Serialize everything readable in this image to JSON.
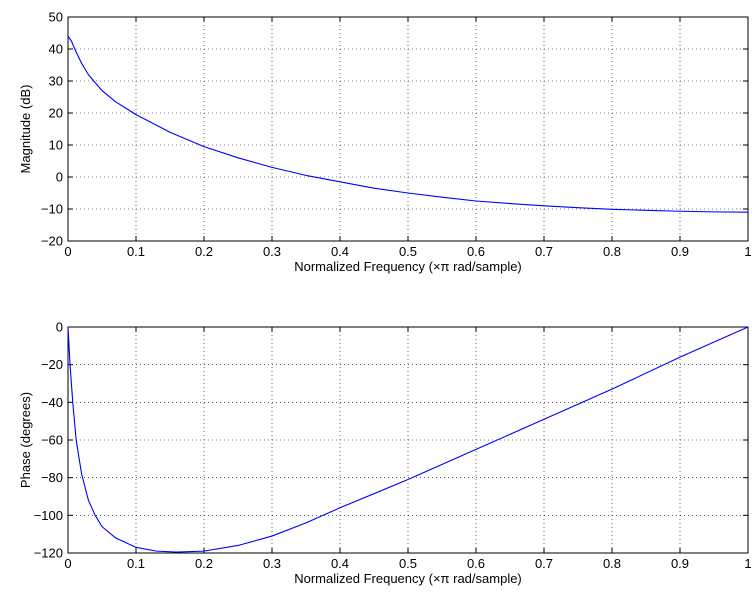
{
  "chart_data": [
    {
      "type": "line",
      "xlabel": "Normalized Frequency  (×π rad/sample)",
      "ylabel": "Magnitude (dB)",
      "xlim": [
        0,
        1
      ],
      "ylim": [
        -20,
        50
      ],
      "x_ticks": [
        "0",
        "0.1",
        "0.2",
        "0.3",
        "0.4",
        "0.5",
        "0.6",
        "0.7",
        "0.8",
        "0.9",
        "1"
      ],
      "y_ticks": [
        "−20",
        "−10",
        "0",
        "10",
        "20",
        "30",
        "40",
        "50"
      ],
      "grid": true,
      "line_color": "#0000ff",
      "series": [
        {
          "x": [
            0,
            0.005,
            0.01,
            0.02,
            0.03,
            0.05,
            0.07,
            0.1,
            0.15,
            0.2,
            0.25,
            0.3,
            0.35,
            0.4,
            0.45,
            0.5,
            0.55,
            0.6,
            0.65,
            0.7,
            0.75,
            0.8,
            0.85,
            0.9,
            0.95,
            1.0
          ],
          "y": [
            44,
            42.5,
            40,
            35.5,
            32,
            27,
            23.5,
            19.5,
            14,
            9.5,
            6,
            3,
            0.5,
            -1.5,
            -3.5,
            -5,
            -6.3,
            -7.5,
            -8.3,
            -9,
            -9.6,
            -10.1,
            -10.4,
            -10.7,
            -10.9,
            -11
          ]
        }
      ]
    },
    {
      "type": "line",
      "xlabel": "Normalized Frequency  (×π rad/sample)",
      "ylabel": "Phase (degrees)",
      "xlim": [
        0,
        1
      ],
      "ylim": [
        -120,
        0
      ],
      "x_ticks": [
        "0",
        "0.1",
        "0.2",
        "0.3",
        "0.4",
        "0.5",
        "0.6",
        "0.7",
        "0.8",
        "0.9",
        "1"
      ],
      "y_ticks": [
        "−120",
        "−100",
        "−80",
        "−60",
        "−40",
        "−20",
        "0"
      ],
      "grid": true,
      "line_color": "#0000ff",
      "series": [
        {
          "x": [
            0,
            0.003,
            0.007,
            0.012,
            0.02,
            0.03,
            0.04,
            0.05,
            0.07,
            0.1,
            0.13,
            0.16,
            0.2,
            0.25,
            0.3,
            0.35,
            0.4,
            0.5,
            0.6,
            0.7,
            0.8,
            0.9,
            1.0
          ],
          "y": [
            0,
            -20,
            -40,
            -60,
            -78,
            -92,
            -100,
            -106,
            -112,
            -117,
            -119,
            -119.5,
            -119,
            -116,
            -111,
            -104,
            -96,
            -81,
            -65,
            -49,
            -33,
            -16,
            0
          ]
        }
      ]
    }
  ]
}
